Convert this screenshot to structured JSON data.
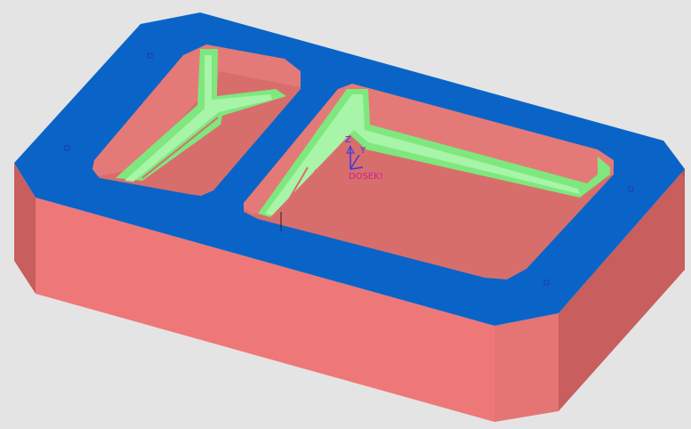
{
  "viewport": {
    "background": "#e4e4e4"
  },
  "model": {
    "top_face_color": "#0a64c8",
    "side_face_color": "#ee7878",
    "side_face_dark_color": "#c85e5e",
    "pocket_wall_color": "#e47a78",
    "pocket_floor_color": "#d86e6c",
    "toolpath_color": "#7ee87e"
  },
  "triad": {
    "z_label": "Z",
    "y_label": "Y",
    "origin_label": "DOSEK!",
    "axis_color": "#3a3ae0",
    "origin_color": "#c8209a"
  }
}
